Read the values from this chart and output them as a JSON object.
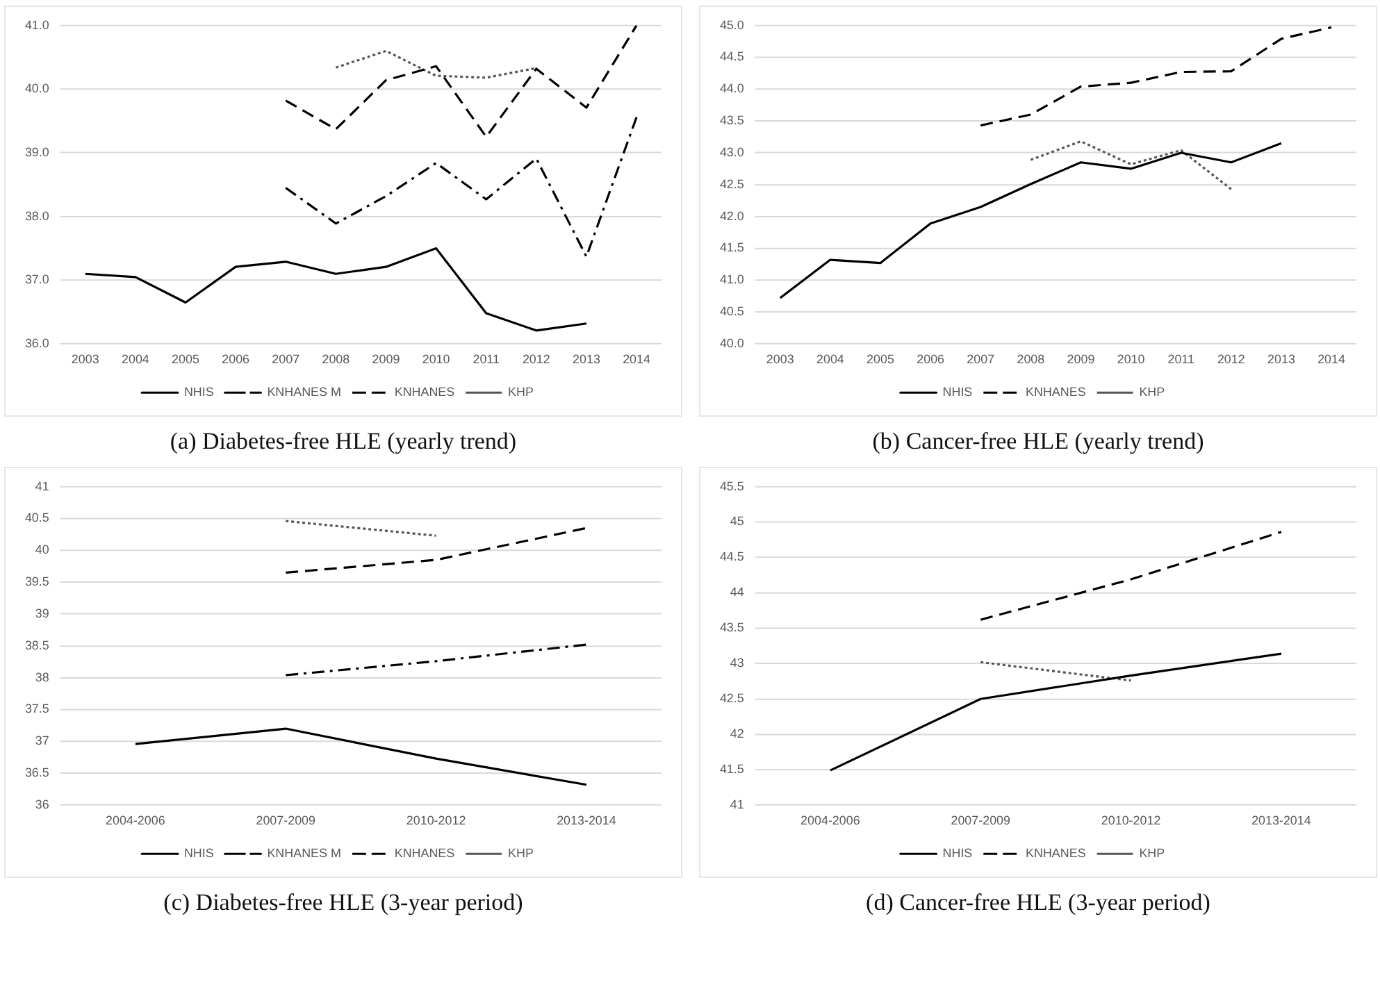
{
  "chart_data": [
    {
      "type": "line",
      "title": "(a) Diabetes-free HLE (yearly trend)",
      "categories": [
        "2003",
        "2004",
        "2005",
        "2006",
        "2007",
        "2008",
        "2009",
        "2010",
        "2011",
        "2012",
        "2013",
        "2014"
      ],
      "series": [
        {
          "name": "NHIS",
          "color": "#000000",
          "line_style": "solid",
          "values": [
            37.1,
            37.05,
            36.65,
            37.21,
            37.29,
            37.1,
            37.21,
            37.5,
            36.48,
            36.21,
            36.32,
            null
          ]
        },
        {
          "name": "KNHANES M",
          "color": "#000000",
          "line_style": "dashdot",
          "values": [
            null,
            null,
            null,
            null,
            38.45,
            37.89,
            38.32,
            38.84,
            38.27,
            38.91,
            37.37,
            39.56
          ]
        },
        {
          "name": "KNHANES",
          "color": "#000000",
          "line_style": "dashed",
          "values": [
            null,
            null,
            null,
            null,
            39.82,
            39.37,
            40.14,
            40.36,
            39.25,
            40.32,
            39.71,
            41.0
          ]
        },
        {
          "name": "KHP",
          "color": "#555555",
          "line_style": "dotted",
          "values": [
            null,
            null,
            null,
            null,
            null,
            40.34,
            40.6,
            40.21,
            40.18,
            40.33,
            null,
            null
          ]
        }
      ],
      "ylim": [
        36,
        41
      ],
      "yticks": [
        {
          "value": 36,
          "label": "36.0"
        },
        {
          "value": 37,
          "label": "37.0"
        },
        {
          "value": 38,
          "label": "38.0"
        },
        {
          "value": 39,
          "label": "39.0"
        },
        {
          "value": 40,
          "label": "40.0"
        },
        {
          "value": 41,
          "label": "41.0"
        }
      ],
      "grid": "y",
      "legend": "bottom",
      "marker": "none"
    },
    {
      "type": "line",
      "title": "(b) Cancer-free HLE (yearly trend)",
      "categories": [
        "2003",
        "2004",
        "2005",
        "2006",
        "2007",
        "2008",
        "2009",
        "2010",
        "2011",
        "2012",
        "2013",
        "2014"
      ],
      "series": [
        {
          "name": "NHIS",
          "color": "#000000",
          "line_style": "solid",
          "values": [
            40.72,
            41.32,
            41.27,
            41.89,
            42.15,
            42.51,
            42.85,
            42.75,
            43.0,
            42.85,
            43.15,
            null
          ]
        },
        {
          "name": "KNHANES",
          "color": "#000000",
          "line_style": "dashed",
          "values": [
            null,
            null,
            null,
            null,
            43.43,
            43.6,
            44.04,
            44.1,
            44.27,
            44.28,
            44.79,
            44.97
          ]
        },
        {
          "name": "KHP",
          "color": "#555555",
          "line_style": "dotted",
          "values": [
            null,
            null,
            null,
            null,
            null,
            42.89,
            43.18,
            42.82,
            43.04,
            42.43,
            null,
            null
          ]
        }
      ],
      "ylim": [
        40,
        45
      ],
      "yticks": [
        {
          "value": 40,
          "label": "40.0"
        },
        {
          "value": 40.5,
          "label": "40.5"
        },
        {
          "value": 41,
          "label": "41.0"
        },
        {
          "value": 41.5,
          "label": "41.5"
        },
        {
          "value": 42,
          "label": "42.0"
        },
        {
          "value": 42.5,
          "label": "42.5"
        },
        {
          "value": 43,
          "label": "43.0"
        },
        {
          "value": 43.5,
          "label": "43.5"
        },
        {
          "value": 44,
          "label": "44.0"
        },
        {
          "value": 44.5,
          "label": "44.5"
        },
        {
          "value": 45,
          "label": "45.0"
        }
      ],
      "grid": "y",
      "legend": "bottom",
      "marker": "none"
    },
    {
      "type": "line",
      "title": "(c) Diabetes-free HLE (3-year period)",
      "categories": [
        "2004-2006",
        "2007-2009",
        "2010-2012",
        "2013-2014"
      ],
      "series": [
        {
          "name": "NHIS",
          "color": "#000000",
          "line_style": "solid",
          "values": [
            36.96,
            37.2,
            36.73,
            36.32
          ]
        },
        {
          "name": "KNHANES M",
          "color": "#000000",
          "line_style": "dashdot",
          "values": [
            null,
            38.04,
            38.26,
            38.52
          ]
        },
        {
          "name": "KNHANES",
          "color": "#000000",
          "line_style": "dashed",
          "values": [
            null,
            39.65,
            39.85,
            40.35
          ]
        },
        {
          "name": "KHP",
          "color": "#555555",
          "line_style": "dotted",
          "values": [
            null,
            40.46,
            40.23,
            null
          ]
        }
      ],
      "ylim": [
        36,
        41
      ],
      "yticks": [
        36,
        36.5,
        37,
        37.5,
        38,
        38.5,
        39,
        39.5,
        40,
        40.5,
        41
      ],
      "grid": "y",
      "legend": "bottom",
      "marker": "none"
    },
    {
      "type": "line",
      "title": "(d) Cancer-free HLE (3-year period)",
      "categories": [
        "2004-2006",
        "2007-2009",
        "2010-2012",
        "2013-2014"
      ],
      "series": [
        {
          "name": "NHIS",
          "color": "#000000",
          "line_style": "solid",
          "values": [
            41.49,
            42.5,
            42.83,
            43.14
          ]
        },
        {
          "name": "KNHANES",
          "color": "#000000",
          "line_style": "dashed",
          "values": [
            null,
            43.62,
            44.19,
            44.86
          ]
        },
        {
          "name": "KHP",
          "color": "#555555",
          "line_style": "dotted",
          "values": [
            null,
            43.02,
            42.76,
            null
          ]
        }
      ],
      "ylim": [
        41,
        45.5
      ],
      "yticks": [
        41,
        41.5,
        42,
        42.5,
        43,
        43.5,
        44,
        44.5,
        45,
        45.5
      ],
      "grid": "y",
      "legend": "bottom",
      "marker": "none"
    }
  ]
}
